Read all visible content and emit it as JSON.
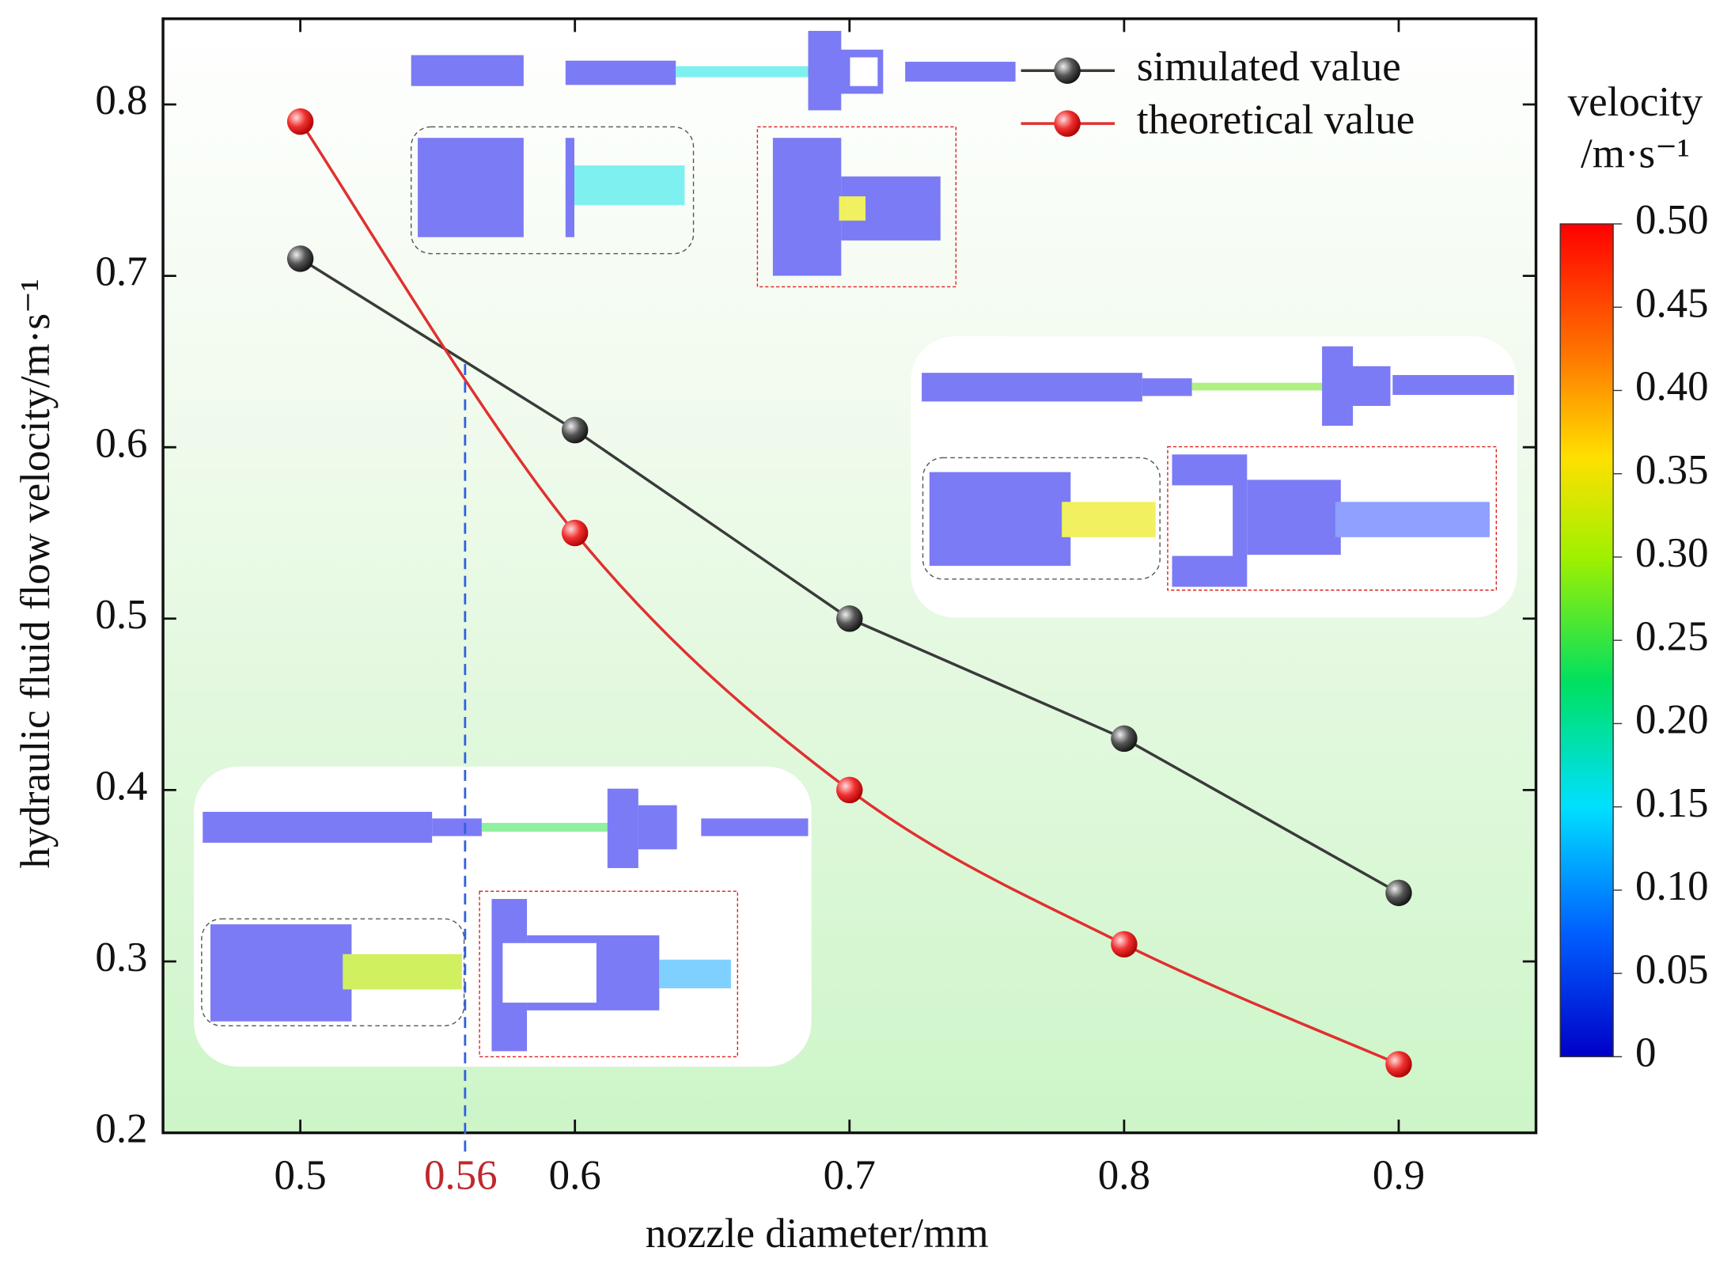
{
  "chart_data": {
    "type": "line",
    "xlabel": "nozzle diameter/mm",
    "ylabel": "hydraulic fluid flow velocity/m·s⁻¹",
    "x": [
      0.5,
      0.6,
      0.7,
      0.8,
      0.9
    ],
    "series": [
      {
        "name": "simulated value",
        "color": "#3a3a3a",
        "values": [
          0.71,
          0.61,
          0.5,
          0.43,
          0.34
        ]
      },
      {
        "name": "theoretical value",
        "color": "#e03030",
        "values": [
          0.79,
          0.55,
          0.4,
          0.31,
          0.24
        ],
        "smooth": true
      }
    ],
    "xlim": [
      0.45,
      0.95
    ],
    "xticks": [
      0.5,
      0.6,
      0.7,
      0.8,
      0.9
    ],
    "ylim": [
      0.2,
      0.85
    ],
    "yticks": [
      0.2,
      0.3,
      0.4,
      0.5,
      0.6,
      0.7,
      0.8
    ],
    "annotations": [
      {
        "x": 0.56,
        "label": "0.56",
        "color": "#c0282a"
      }
    ],
    "legend": "upper right",
    "colorbar": {
      "title": "velocity",
      "unit": "/m·s⁻¹",
      "lim": [
        0,
        0.5
      ],
      "ticks": [
        0,
        0.05,
        {
          "value": 0.1,
          "label": "0.10"
        },
        0.15,
        {
          "value": 0.2,
          "label": "0.20"
        },
        0.25,
        {
          "value": 0.3,
          "label": "0.30"
        },
        0.35,
        {
          "value": 0.4,
          "label": "0.40"
        },
        0.45,
        {
          "value": 0.5,
          "label": "0.50"
        }
      ]
    }
  }
}
